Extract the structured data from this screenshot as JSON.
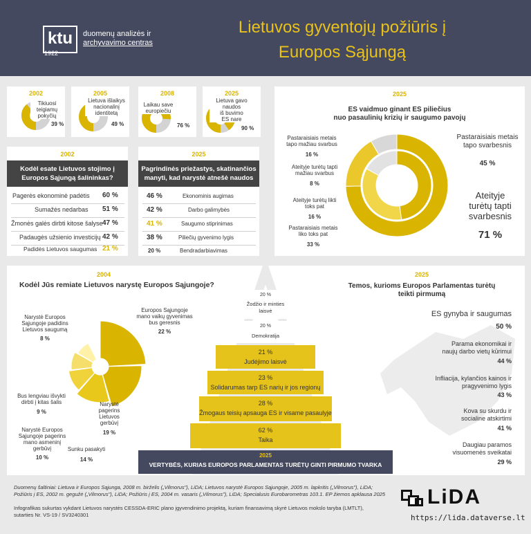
{
  "header": {
    "logo": "ktu",
    "logo_year": "1922",
    "org_line1": "duomenų analizės ir",
    "org_line2": "archyvavimo centras",
    "title_line1": "Lietuvos gyventojų požiūris į",
    "title_line2": "Europos Sąjungą"
  },
  "mini_cards": [
    {
      "year": "2002",
      "label_l1": "Tikiuosi",
      "label_l2": "teigiamų",
      "label_l3": "pokyčių",
      "value": "39 %",
      "pct": 39
    },
    {
      "year": "2005",
      "label_l1": "Lietuva išlaikys",
      "label_l2": "nacionalinį",
      "label_l3": "identitetą",
      "value": "49 %",
      "pct": 49
    },
    {
      "year": "2008",
      "label_l1": "Laikau save",
      "label_l2": "europiečiu",
      "label_l3": "",
      "value": "76 %",
      "pct": 76
    },
    {
      "year": "2025",
      "label_l1": "Lietuva gavo",
      "label_l2": "naudos",
      "label_l3": "iš buvimo",
      "label_l4": "ES nare",
      "value": "90 %",
      "pct": 90
    }
  ],
  "joining": {
    "year": "2002",
    "q_l1": "Kodėl esate Lietuvos stojimo į",
    "q_l2": "Europos Sąjungą šalininkas?",
    "rows": [
      {
        "label": "Pagerės ekonominė padėtis",
        "value": "60 %"
      },
      {
        "label": "Sumažės nedarbas",
        "value": "51 %"
      },
      {
        "label": "Žmonės galės dirbti kitose šalyse",
        "value": "47 %"
      },
      {
        "label": "Padaugės užsienio investicijų",
        "value": "42 %"
      },
      {
        "label": "Padidės Lietuvos saugumas",
        "value": "21 %"
      }
    ]
  },
  "reasons": {
    "year": "2025",
    "q_l1": "Pagrindinės priežastys, skatinančios",
    "q_l2": "manyti, kad narystė atnešė naudos",
    "rows": [
      {
        "value": "46 %",
        "label": "Ekonominis augimas"
      },
      {
        "value": "42 %",
        "label": "Darbo galimybės"
      },
      {
        "value": "41 %",
        "label": "Saugumo stiprinimas"
      },
      {
        "value": "38 %",
        "label": "Piliečių gyvenimo lygis"
      },
      {
        "value": "20 %",
        "label": "Bendradarbiavimas"
      }
    ]
  },
  "role": {
    "year": "2025",
    "title_l1": "ES vaidmuo ginant ES piliečius",
    "title_l2": "nuo pasaulinių krizių ir saugumo pavojų",
    "items": [
      {
        "l1": "Pastaraisiais metais",
        "l2": "tapo mažiau svarbus",
        "value": "16 %"
      },
      {
        "l1": "Ateityje turėtų tapti",
        "l2": "mažiau svarbus",
        "value": "8 %"
      },
      {
        "l1": "Ateityje turėtų likti",
        "l2": "toks pat",
        "value": "16 %"
      },
      {
        "l1": "Pastaraisiais metais",
        "l2": "liko toks pat",
        "value": "33 %"
      },
      {
        "l1": "Pastaraisiais metais",
        "l2": "tapo svarbesnis",
        "value": "45 %"
      },
      {
        "l1": "Ateityje",
        "l2": "turėtų tapti",
        "l3": "svarbesnis",
        "value": "71 %"
      }
    ]
  },
  "support": {
    "year": "2004",
    "title": "Kodėl Jūs remiate Lietuvos narystę Europos Sąjungoje?",
    "items": [
      {
        "l1": "Narystė Europos",
        "l2": "Sąjungoje padidins",
        "l3": "Lietuvos saugumą",
        "value": "8 %"
      },
      {
        "l1": "Europos Sąjungoje",
        "l2": "mano vaikų gyvenimas",
        "l3": "bus geresnis",
        "value": "22 %"
      },
      {
        "l1": "Bus lengviau išvykti",
        "l2": "dirbti į kitas šalis",
        "l3": "",
        "value": "9 %"
      },
      {
        "l1": "Narystė",
        "l2": "pagerins",
        "l3": "Lietuvos",
        "l4": "gerbūvį",
        "value": "19 %"
      },
      {
        "l1": "Narystė Europos",
        "l2": "Sąjungoje pagerins",
        "l3": "mano asmeninį",
        "l4": "gerbūvį",
        "value": "10 %"
      },
      {
        "l1": "Sunku pasakyti",
        "value": "14 %"
      }
    ]
  },
  "pyramid": {
    "levels": [
      {
        "value": "20 %",
        "l1": "Žodžio ir minties",
        "l2": "laisvė"
      },
      {
        "value": "20 %",
        "l1": "Demokratija"
      },
      {
        "value": "21 %",
        "l1": "Judėjimo laisvė"
      },
      {
        "value": "23 %",
        "l1": "Solidarumas tarp ES narių ir jos regionų"
      },
      {
        "value": "28 %",
        "l1": "Žmogaus teisių apsauga ES ir visame pasaulyje"
      },
      {
        "value": "62 %",
        "l1": "Taika"
      }
    ],
    "base_year": "2025",
    "base_title": "VERTYBĖS, KURIAS EUROPOS PARLAMENTAS TURĖTŲ GINTI PIRMUMO TVARKA"
  },
  "topics": {
    "year": "2025",
    "title_l1": "Temos, kurioms Europos Parlamentas turėtų",
    "title_l2": "teikti pirmumą",
    "items": [
      {
        "l1": "ES gynyba ir saugumas",
        "value": "50 %"
      },
      {
        "l1": "Parama ekonomikai ir",
        "l2": "naujų darbo vietų kūrimui",
        "value": "44 %"
      },
      {
        "l1": "Infliacija, kylančios kainos ir",
        "l2": "pragyvenimo lygis",
        "value": "43 %"
      },
      {
        "l1": "Kova su skurdu ir",
        "l2": "socialine atskirtimi",
        "value": "41 %"
      },
      {
        "l1": "Daugiau paramos",
        "l2": "visuomenės sveikatai",
        "value": "29 %"
      }
    ]
  },
  "footer": {
    "sources_1": "Duomenų šaltiniai: Lietuva ir Europos Sąjunga, 2008 m. birželis („Vilmorus\"), LiDA; Lietuvos narystė Europos Sąjungoje, 2005 m. lapkritis („Vilmorus\"), LiDA;",
    "sources_2": "Požiūris į ES, 2002 m. gegužė („Vilmorus\"), LiDA; Požiūris į ES, 2004 m. vasaris („Vilmorus\"), LiDA; Specialusis Eurobarometras 103.1. EP žiemos apklausa 2025",
    "project_1": "Infografikas sukurtas vykdant Lietuvos narystės CESSDA-ERIC plano įgyvendinimo projektą, kuriam finansavimą skyrė Lietuvos mokslo taryba (LMTLT),",
    "project_2": "sutarties Nr. VS-19 / SV3240301",
    "lida_logo": "LiDA",
    "lida_url": "https://lida.dataverse.lt"
  },
  "colors": {
    "gold": "#d9b400",
    "navy": "#44495f",
    "grey": "#d3d3d3"
  }
}
